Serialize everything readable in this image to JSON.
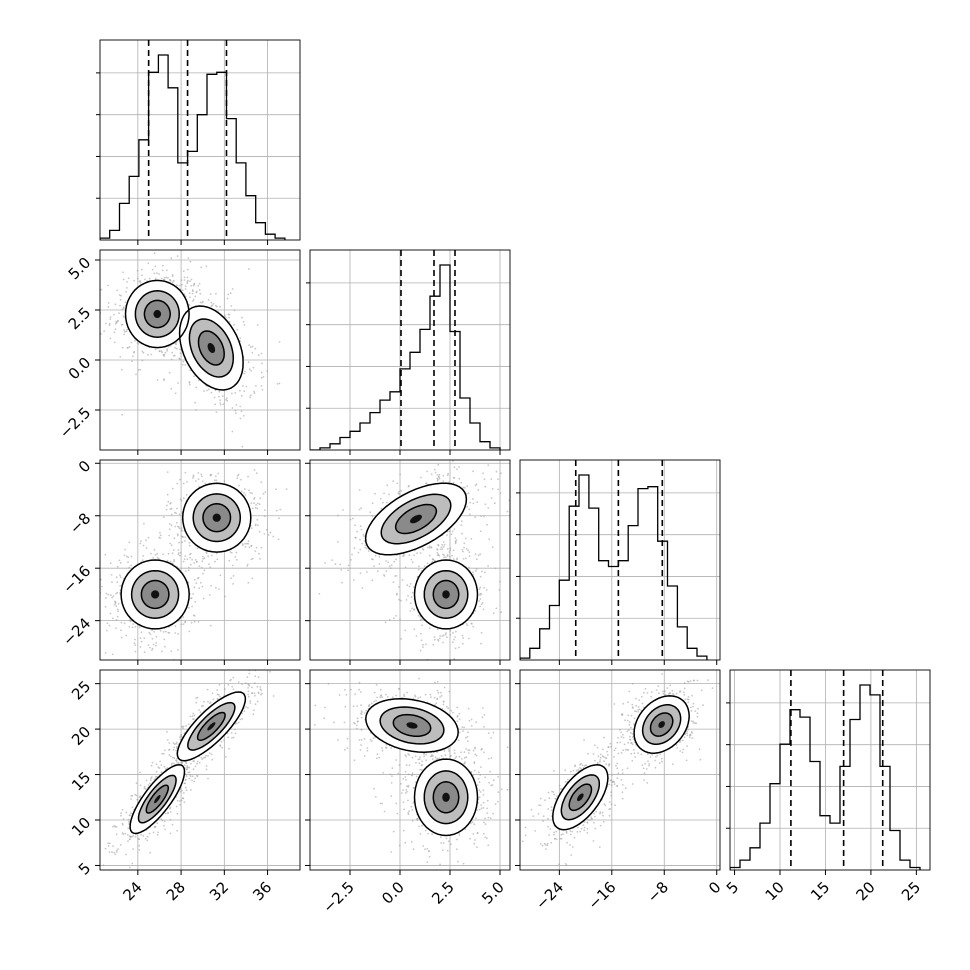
{
  "chart_data": {
    "type": "corner",
    "parameters": [
      {
        "ticks": [
          24,
          28,
          32,
          36
        ],
        "tick_labels": [
          "24",
          "28",
          "32",
          "36"
        ],
        "range": [
          20.5,
          39
        ],
        "hist_bins": [
          20.5,
          21.4,
          22.3,
          23.2,
          24.1,
          25.0,
          25.9,
          26.8,
          27.7,
          28.6,
          29.5,
          30.4,
          31.3,
          32.2,
          33.1,
          34.0,
          34.9,
          35.8,
          36.7,
          37.6
        ],
        "hist_counts": [
          0.01,
          0.05,
          0.19,
          0.33,
          0.52,
          0.87,
          0.96,
          0.79,
          0.4,
          0.46,
          0.65,
          0.86,
          0.87,
          0.63,
          0.4,
          0.23,
          0.09,
          0.03,
          0.01
        ],
        "quantiles": [
          25.0,
          28.6,
          32.2
        ]
      },
      {
        "ticks": [
          -2.5,
          0.0,
          2.5,
          5.0
        ],
        "tick_labels": [
          "−2.5",
          "0.0",
          "2.5",
          "5.0"
        ],
        "range": [
          -4.5,
          5.5
        ],
        "hist_bins": [
          -4.5,
          -4.0,
          -3.5,
          -3.0,
          -2.5,
          -2.0,
          -1.5,
          -1.0,
          -0.5,
          0.0,
          0.5,
          1.0,
          1.5,
          2.0,
          2.5,
          3.0,
          3.5,
          4.0,
          4.5,
          5.0
        ],
        "hist_counts": [
          0.0,
          0.01,
          0.03,
          0.06,
          0.09,
          0.13,
          0.18,
          0.24,
          0.28,
          0.39,
          0.47,
          0.58,
          0.74,
          0.89,
          0.57,
          0.25,
          0.13,
          0.04,
          0.01
        ],
        "quantiles": [
          0.05,
          1.7,
          2.75
        ]
      },
      {
        "ticks": [
          -24,
          -16,
          -8,
          0
        ],
        "tick_labels": [
          "−24",
          "−16",
          "−8",
          "0"
        ],
        "range": [
          -30,
          0.5
        ],
        "hist_bins": [
          -30.0,
          -28.5,
          -27.0,
          -25.5,
          -24.0,
          -22.5,
          -21.0,
          -19.5,
          -18.0,
          -16.5,
          -15.0,
          -13.5,
          -12.0,
          -10.5,
          -9.0,
          -7.5,
          -6.0,
          -4.5,
          -3.0,
          -1.5
        ],
        "hist_counts": [
          0.01,
          0.06,
          0.16,
          0.28,
          0.41,
          0.79,
          0.95,
          0.78,
          0.51,
          0.48,
          0.51,
          0.69,
          0.88,
          0.89,
          0.61,
          0.38,
          0.17,
          0.06,
          0.02
        ],
        "quantiles": [
          -21.5,
          -15.0,
          -8.3
        ]
      },
      {
        "ticks": [
          5,
          10,
          15,
          20,
          25
        ],
        "tick_labels": [
          "5",
          "10",
          "15",
          "20",
          "25"
        ],
        "range": [
          4.5,
          26.5
        ],
        "hist_bins": [
          4.5,
          5.6,
          6.7,
          7.8,
          8.9,
          10.0,
          11.1,
          12.2,
          13.3,
          14.4,
          15.5,
          16.6,
          17.7,
          18.8,
          19.9,
          21.0,
          22.1,
          23.2,
          24.3,
          25.4
        ],
        "hist_counts": [
          0.01,
          0.04,
          0.09,
          0.19,
          0.35,
          0.51,
          0.65,
          0.62,
          0.44,
          0.22,
          0.19,
          0.42,
          0.61,
          0.75,
          0.71,
          0.42,
          0.16,
          0.04,
          0.01
        ],
        "quantiles": [
          11.2,
          17.0,
          21.3
        ]
      }
    ],
    "density_2d": [
      {
        "pair": [
          1,
          0
        ],
        "modes": [
          {
            "cx": 25.8,
            "cy": 2.3,
            "sx": 1.4,
            "sy": 0.8,
            "rho": 0.0,
            "w": 1.0
          },
          {
            "cx": 30.8,
            "cy": 0.6,
            "sx": 1.4,
            "sy": 1.0,
            "rho": -0.35,
            "w": 0.75
          }
        ]
      },
      {
        "pair": [
          2,
          0
        ],
        "modes": [
          {
            "cx": 25.6,
            "cy": -20.0,
            "sx": 1.5,
            "sy": 2.5,
            "rho": 0.0,
            "w": 1.0
          },
          {
            "cx": 31.3,
            "cy": -8.3,
            "sx": 1.5,
            "sy": 2.5,
            "rho": 0.0,
            "w": 1.0
          }
        ]
      },
      {
        "pair": [
          2,
          1
        ],
        "modes": [
          {
            "cx": 0.8,
            "cy": -8.5,
            "sx": 1.2,
            "sy": 2.6,
            "rho": 0.55,
            "w": 1.0
          },
          {
            "cx": 2.3,
            "cy": -20.0,
            "sx": 0.75,
            "sy": 2.5,
            "rho": 0.0,
            "w": 1.0
          }
        ]
      },
      {
        "pair": [
          3,
          0
        ],
        "modes": [
          {
            "cx": 25.8,
            "cy": 12.3,
            "sx": 1.2,
            "sy": 1.8,
            "rho": 0.8,
            "w": 1.0
          },
          {
            "cx": 30.8,
            "cy": 20.3,
            "sx": 1.5,
            "sy": 1.8,
            "rho": 0.8,
            "w": 1.0
          }
        ]
      },
      {
        "pair": [
          3,
          1
        ],
        "modes": [
          {
            "cx": 0.6,
            "cy": 20.4,
            "sx": 1.1,
            "sy": 1.4,
            "rho": -0.25,
            "w": 1.0
          },
          {
            "cx": 2.3,
            "cy": 12.5,
            "sx": 0.75,
            "sy": 2.0,
            "rho": 0.0,
            "w": 1.0
          }
        ]
      },
      {
        "pair": [
          3,
          2
        ],
        "modes": [
          {
            "cx": -20.8,
            "cy": 12.5,
            "sx": 2.0,
            "sy": 1.7,
            "rho": 0.6,
            "w": 1.0
          },
          {
            "cx": -8.4,
            "cy": 20.5,
            "sx": 2.0,
            "sy": 1.5,
            "rho": 0.3,
            "w": 1.0
          }
        ]
      }
    ]
  }
}
